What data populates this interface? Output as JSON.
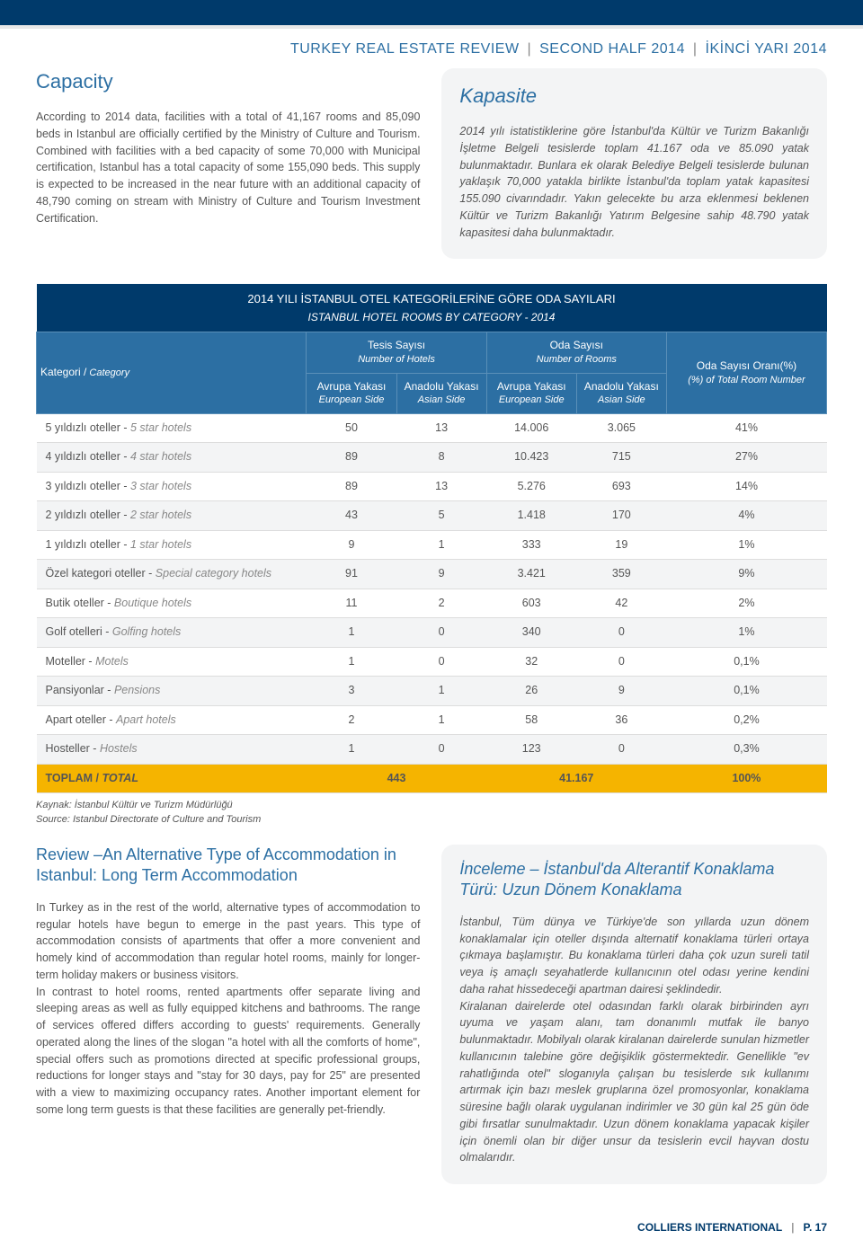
{
  "header": {
    "title_a": "TURKEY REAL ESTATE REVIEW",
    "title_b": "SECOND HALF 2014",
    "title_c": "İKİNCİ YARI 2014"
  },
  "capacity": {
    "title_en": "Capacity",
    "title_tr": "Kapasite",
    "body_en": "According to 2014 data, facilities with a total of 41,167 rooms and 85,090 beds in Istanbul are officially certified by the Ministry of Culture and Tourism. Combined with facilities with a bed capacity of some 70,000 with Municipal certification, Istanbul has a total capacity of some 155,090 beds. This supply is expected to be increased in the near future with an additional capacity of 48,790 coming on stream with Ministry of Culture and Tourism Investment Certification.",
    "body_tr": "2014 yılı istatistiklerine göre İstanbul'da Kültür ve Turizm Bakanlığı İşletme Belgeli tesislerde toplam 41.167 oda ve 85.090 yatak bulunmaktadır. Bunlara ek olarak Belediye Belgeli tesislerde bulunan yaklaşık 70,000 yatakla birlikte İstanbul'da toplam yatak kapasitesi 155.090 civarındadır. Yakın gelecekte bu arza eklenmesi beklenen Kültür ve Turizm Bakanlığı Yatırım Belgesine sahip 48.790 yatak kapasitesi daha bulunmaktadır."
  },
  "table": {
    "title_tr": "2014 YILI İSTANBUL OTEL KATEGORİLERİNE GÖRE ODA SAYILARI",
    "title_en": "ISTANBUL HOTEL ROOMS BY CATEGORY - 2014",
    "col_category_tr": "Kategori /",
    "col_category_en": " Category",
    "col_hotels_tr": "Tesis Sayısı",
    "col_hotels_en": "Number of Hotels",
    "col_rooms_tr": "Oda Sayısı",
    "col_rooms_en": "Number of Rooms",
    "col_euro_tr": "Avrupa Yakası",
    "col_euro_en": "European Side",
    "col_asia_tr": "Anadolu Yakası",
    "col_asia_en": "Asian Side",
    "col_ratio_tr": "Oda Sayısı Oranı(%)",
    "col_ratio_en": "(%) of Total Room Number",
    "rows": [
      {
        "cat_tr": "5 yıldızlı oteller - ",
        "cat_en": "5 star hotels",
        "h_eu": "50",
        "h_as": "13",
        "r_eu": "14.006",
        "r_as": "3.065",
        "pct": "41%"
      },
      {
        "cat_tr": "4 yıldızlı oteller - ",
        "cat_en": "4 star hotels",
        "h_eu": "89",
        "h_as": "8",
        "r_eu": "10.423",
        "r_as": "715",
        "pct": "27%"
      },
      {
        "cat_tr": "3 yıldızlı oteller - ",
        "cat_en": "3 star hotels",
        "h_eu": "89",
        "h_as": "13",
        "r_eu": "5.276",
        "r_as": "693",
        "pct": "14%"
      },
      {
        "cat_tr": "2 yıldızlı oteller - ",
        "cat_en": "2 star hotels",
        "h_eu": "43",
        "h_as": "5",
        "r_eu": "1.418",
        "r_as": "170",
        "pct": "4%"
      },
      {
        "cat_tr": "1 yıldızlı oteller - ",
        "cat_en": "1 star hotels",
        "h_eu": "9",
        "h_as": "1",
        "r_eu": "333",
        "r_as": "19",
        "pct": "1%"
      },
      {
        "cat_tr": "Özel kategori oteller - ",
        "cat_en": "Special category hotels",
        "h_eu": "91",
        "h_as": "9",
        "r_eu": "3.421",
        "r_as": "359",
        "pct": "9%"
      },
      {
        "cat_tr": "Butik oteller - ",
        "cat_en": "Boutique hotels",
        "h_eu": "11",
        "h_as": "2",
        "r_eu": "603",
        "r_as": "42",
        "pct": "2%"
      },
      {
        "cat_tr": "Golf otelleri - ",
        "cat_en": "Golfing hotels",
        "h_eu": "1",
        "h_as": "0",
        "r_eu": "340",
        "r_as": "0",
        "pct": "1%"
      },
      {
        "cat_tr": "Moteller - ",
        "cat_en": "Motels",
        "h_eu": "1",
        "h_as": "0",
        "r_eu": "32",
        "r_as": "0",
        "pct": "0,1%"
      },
      {
        "cat_tr": "Pansiyonlar - ",
        "cat_en": "Pensions",
        "h_eu": "3",
        "h_as": "1",
        "r_eu": "26",
        "r_as": "9",
        "pct": "0,1%"
      },
      {
        "cat_tr": "Apart oteller - ",
        "cat_en": "Apart hotels",
        "h_eu": "2",
        "h_as": "1",
        "r_eu": "58",
        "r_as": "36",
        "pct": "0,2%"
      },
      {
        "cat_tr": "Hosteller - ",
        "cat_en": "Hostels",
        "h_eu": "1",
        "h_as": "0",
        "r_eu": "123",
        "r_as": "0",
        "pct": "0,3%"
      }
    ],
    "total": {
      "label_tr": "TOPLAM / ",
      "label_en": "TOTAL",
      "hotels": "443",
      "rooms": "41.167",
      "pct": "100%"
    },
    "source_tr": "Kaynak: İstanbul Kültür ve Turizm Müdürlüğü",
    "source_en": "Source: Istanbul Directorate of Culture and Tourism"
  },
  "review": {
    "title_en": "Review –An Alternative Type of Accommodation in Istanbul: Long Term Accommodation",
    "title_tr": "İnceleme – İstanbul'da Alterantif Konaklama Türü: Uzun Dönem Konaklama",
    "body_en": "In Turkey as in the rest of the world, alternative types of accommodation to regular hotels have begun to emerge in the past years. This type of accommodation consists of apartments that offer a more convenient and homely kind of accommodation than regular hotel rooms, mainly for longer-term holiday makers or business visitors.\nIn contrast to hotel rooms, rented apartments offer separate living and sleeping areas as well as fully equipped kitchens and bathrooms. The range of services offered differs according to guests' requirements. Generally operated along the lines of the slogan \"a hotel with all the comforts of home\", special offers such as promotions directed at specific professional groups, reductions for longer stays and \"stay for 30 days, pay for 25\" are presented with a view to maximizing occupancy rates. Another important element for some long term guests is that these facilities are generally pet-friendly.",
    "body_tr": "İstanbul, Tüm dünya ve Türkiye'de son yıllarda uzun dönem konaklamalar için oteller dışında alternatif konaklama türleri ortaya çıkmaya başlamıştır. Bu konaklama türleri daha çok uzun sureli tatil veya iş amaçlı seyahatlerde kullanıcının otel odası yerine kendini daha rahat hissedeceği apartman dairesi şeklindedir.\nKiralanan dairelerde otel odasından farklı olarak birbirinden ayrı uyuma ve yaşam alanı, tam donanımlı mutfak ile banyo bulunmaktadır. Mobilyalı olarak kiralanan dairelerde sunulan hizmetler kullanıcının talebine göre değişiklik göstermektedir. Genellikle \"ev rahatlığında otel\" sloganıyla çalışan bu tesislerde sık kullanımı artırmak için bazı meslek gruplarına özel promosyonlar, konaklama süresine bağlı olarak uygulanan indirimler ve 30 gün kal 25 gün öde gibi fırsatlar sunulmaktadır. Uzun dönem konaklama yapacak kişiler için önemli olan bir diğer unsur da tesislerin evcil hayvan dostu olmalarıdır."
  },
  "footer": {
    "brand": "COLLIERS INTERNATIONAL",
    "page": "P. 17"
  },
  "colors": {
    "navy": "#003a6b",
    "blue": "#2c6fa3",
    "gold": "#f5b400",
    "grey_bg": "#f3f4f5"
  }
}
